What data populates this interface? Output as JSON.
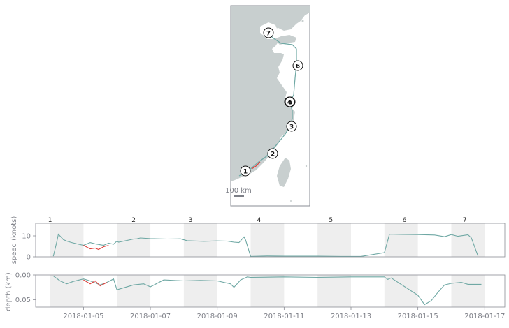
{
  "colors": {
    "track": "#6fa8a4",
    "highlight": "#e0413c",
    "land": "#c8cfcf",
    "panel_border": "#8a8c94",
    "band": "#eeeeee",
    "text": "#7d7f87"
  },
  "map": {
    "scale_label": "100 km",
    "markers": [
      {
        "label": "1"
      },
      {
        "label": "2"
      },
      {
        "label": "3"
      },
      {
        "label": "4"
      },
      {
        "label": "5"
      },
      {
        "label": "6"
      },
      {
        "label": "7"
      }
    ]
  },
  "chart_data": [
    {
      "type": "line",
      "ylabel": "speed (knots)",
      "yticks": [
        "10",
        "0"
      ],
      "ylim": [
        0,
        16
      ],
      "stop_labels": [
        "1",
        "2",
        "3",
        "4",
        "5",
        "6",
        "7"
      ],
      "stop_dates": [
        "2018-01-04",
        "2018-01-06.5",
        "2018-01-08.2",
        "2018-01-10.25",
        "2018-01-12.4",
        "2018-01-14.6",
        "2018-01-16.4"
      ],
      "series": [
        {
          "x": [
            "2018-01-04.1",
            "2018-01-04.2",
            "2018-01-04.25",
            "2018-01-04.4",
            "2018-01-04.5",
            "2018-01-04.65",
            "2018-01-04.8",
            "2018-01-05.0",
            "2018-01-05.2",
            "2018-01-05.35",
            "2018-01-05.6",
            "2018-01-05.75",
            "2018-01-05.9",
            "2018-01-06.0",
            "2018-01-06.05",
            "2018-01-06.5",
            "2018-01-06.6",
            "2018-01-06.7",
            "2018-01-07.0",
            "2018-01-07.5",
            "2018-01-07.9",
            "2018-01-08.1",
            "2018-01-08.6",
            "2018-01-09.0",
            "2018-01-09.3",
            "2018-01-09.5",
            "2018-01-09.65",
            "2018-01-09.8",
            "2018-01-09.85",
            "2018-01-10.0",
            "2018-01-10.5",
            "2018-01-11.0",
            "2018-01-12.0",
            "2018-01-12.7",
            "2018-01-13.3",
            "2018-01-14.0",
            "2018-01-14.1",
            "2018-01-14.15",
            "2018-01-14.5",
            "2018-01-15.0",
            "2018-01-15.5",
            "2018-01-15.8",
            "2018-01-16.0",
            "2018-01-16.2",
            "2018-01-16.5",
            "2018-01-16.6",
            "2018-01-16.8"
          ],
          "y": [
            0.3,
            7,
            10.8,
            8.2,
            7.5,
            6.8,
            6.2,
            5.5,
            6.8,
            6.2,
            5.5,
            6.5,
            6.0,
            7.5,
            7.0,
            8.5,
            8.6,
            9.0,
            8.7,
            8.5,
            8.6,
            7.7,
            7.4,
            7.6,
            7.5,
            7.0,
            6.8,
            9.5,
            8.0,
            0.2,
            0.4,
            0.3,
            0.3,
            0.2,
            0.2,
            2.0,
            7.8,
            10.8,
            10.7,
            10.6,
            10.4,
            9.6,
            10.6,
            9.8,
            10.5,
            9.0,
            0.3
          ]
        },
        {
          "name": "highlight",
          "x": [
            "2018-01-05.0",
            "2018-01-05.2",
            "2018-01-05.35",
            "2018-01-05.45",
            "2018-01-05.6",
            "2018-01-05.75"
          ],
          "y": [
            5.5,
            3.8,
            4.2,
            3.5,
            4.8,
            5.5
          ]
        }
      ]
    },
    {
      "type": "line",
      "ylabel": "depth (km)",
      "yticks": [
        "0.00",
        "0.05"
      ],
      "ylim": [
        0,
        0.065
      ],
      "xticks": [
        "2018-01-05",
        "2018-01-07",
        "2018-01-09",
        "2018-01-11",
        "2018-01-13",
        "2018-01-15",
        "2018-01-17"
      ],
      "series": [
        {
          "x": [
            "2018-01-04.1",
            "2018-01-04.3",
            "2018-01-04.5",
            "2018-01-04.7",
            "2018-01-05.0",
            "2018-01-05.2",
            "2018-01-05.35",
            "2018-01-05.5",
            "2018-01-05.7",
            "2018-01-05.9",
            "2018-01-06.0",
            "2018-01-06.5",
            "2018-01-06.8",
            "2018-01-07.0",
            "2018-01-07.4",
            "2018-01-08.0",
            "2018-01-08.5",
            "2018-01-09.0",
            "2018-01-09.4",
            "2018-01-09.5",
            "2018-01-09.7",
            "2018-01-09.9",
            "2018-01-10.0",
            "2018-01-11.0",
            "2018-01-12.0",
            "2018-01-13.0",
            "2018-01-14.0",
            "2018-01-14.1",
            "2018-01-14.2",
            "2018-01-15.0",
            "2018-01-15.2",
            "2018-01-15.4",
            "2018-01-15.6",
            "2018-01-15.8",
            "2018-01-16.0",
            "2018-01-16.3",
            "2018-01-16.5",
            "2018-01-16.9"
          ],
          "y": [
            0.002,
            0.012,
            0.018,
            0.013,
            0.008,
            0.012,
            0.016,
            0.02,
            0.015,
            0.008,
            0.03,
            0.02,
            0.018,
            0.024,
            0.01,
            0.012,
            0.011,
            0.012,
            0.018,
            0.025,
            0.01,
            0.004,
            0.005,
            0.004,
            0.005,
            0.004,
            0.004,
            0.009,
            0.006,
            0.041,
            0.06,
            0.052,
            0.035,
            0.02,
            0.017,
            0.015,
            0.019,
            0.019
          ]
        },
        {
          "name": "highlight",
          "x": [
            "2018-01-05.0",
            "2018-01-05.2",
            "2018-01-05.35",
            "2018-01-05.5",
            "2018-01-05.7"
          ],
          "y": [
            0.01,
            0.018,
            0.012,
            0.022,
            0.015
          ]
        }
      ]
    }
  ]
}
